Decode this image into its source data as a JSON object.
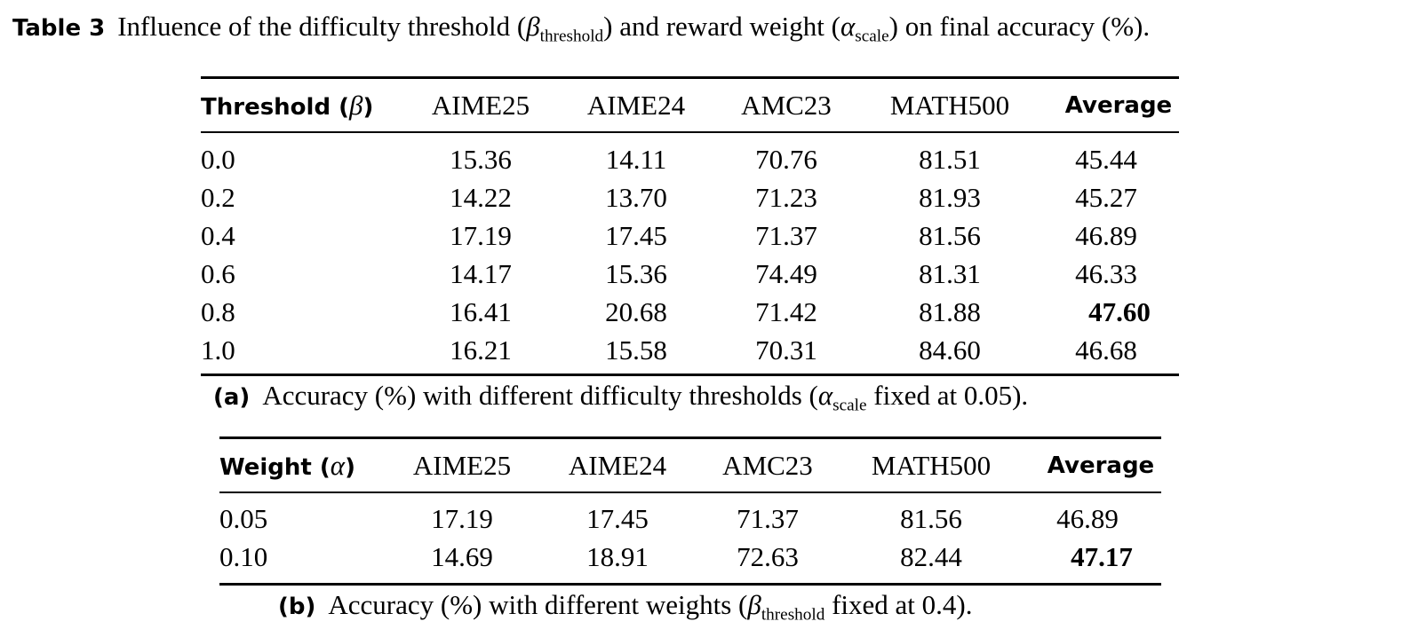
{
  "caption": {
    "label": "Table 3",
    "t1": "Influence of the difficulty threshold (",
    "beta": "β",
    "beta_sub": "threshold",
    "t2": ") and reward weight (",
    "alpha": "α",
    "alpha_sub": "scale",
    "t3": ") on final accuracy (%)."
  },
  "table_a": {
    "header": {
      "first_label": "Threshold (",
      "first_symbol": "β",
      "first_close": ")",
      "cols": [
        "AIME25",
        "AIME24",
        "AMC23",
        "MATH500"
      ],
      "avg": "Average"
    },
    "rows": [
      {
        "key": "0.0",
        "vals": [
          "15.36",
          "14.11",
          "70.76",
          "81.51"
        ],
        "avg": "45.44"
      },
      {
        "key": "0.2",
        "vals": [
          "14.22",
          "13.70",
          "71.23",
          "81.93"
        ],
        "avg": "45.27"
      },
      {
        "key": "0.4",
        "vals": [
          "17.19",
          "17.45",
          "71.37",
          "81.56"
        ],
        "avg": "46.89"
      },
      {
        "key": "0.6",
        "vals": [
          "14.17",
          "15.36",
          "74.49",
          "81.31"
        ],
        "avg": "46.33"
      },
      {
        "key": "0.8",
        "vals": [
          "16.41",
          "20.68",
          "71.42",
          "81.88"
        ],
        "avg": "47.60"
      },
      {
        "key": "1.0",
        "vals": [
          "16.21",
          "15.58",
          "70.31",
          "84.60"
        ],
        "avg": "46.68"
      }
    ],
    "caption": {
      "label": "(a)",
      "t1": "Accuracy (%) with different difficulty thresholds (",
      "symbol": "α",
      "sub": "scale",
      "t2": " fixed at 0.05)."
    }
  },
  "table_b": {
    "header": {
      "first_label": "Weight (",
      "first_symbol": "α",
      "first_close": ")",
      "cols": [
        "AIME25",
        "AIME24",
        "AMC23",
        "MATH500"
      ],
      "avg": "Average"
    },
    "rows": [
      {
        "key": "0.05",
        "vals": [
          "17.19",
          "17.45",
          "71.37",
          "81.56"
        ],
        "avg": "46.89"
      },
      {
        "key": "0.10",
        "vals": [
          "14.69",
          "18.91",
          "72.63",
          "82.44"
        ],
        "avg": "47.17"
      }
    ],
    "caption": {
      "label": "(b)",
      "t1": "Accuracy (%) with different weights (",
      "symbol": "β",
      "sub": "threshold",
      "t2": " fixed at 0.4)."
    }
  }
}
